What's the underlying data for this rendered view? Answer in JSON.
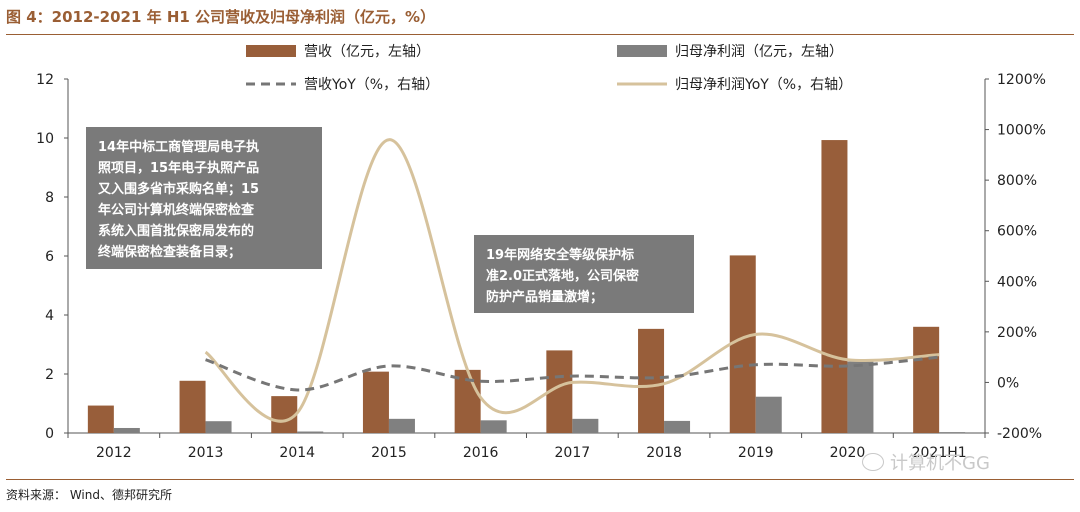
{
  "title": "图 4：2012-2021 年 H1 公司营收及归母净利润（亿元，%）",
  "source": "资料来源： Wind、德邦研究所",
  "watermark": "计算机不GG",
  "colors": {
    "revenue": "#985e3a",
    "profit": "#808080",
    "revenue_yoy": "#767676",
    "profit_yoy": "#d6c29c",
    "annotation_bg": "#7a7a7a",
    "title": "#9a5e34"
  },
  "chart_data": {
    "type": "bar",
    "categories": [
      "2012",
      "2013",
      "2014",
      "2015",
      "2016",
      "2017",
      "2018",
      "2019",
      "2020",
      "2021H1"
    ],
    "series": [
      {
        "name": "营收（亿元，左轴）",
        "type": "bar",
        "axis": "left",
        "values": [
          0.93,
          1.77,
          1.25,
          2.08,
          2.14,
          2.8,
          3.53,
          6.02,
          9.93,
          3.6
        ]
      },
      {
        "name": "归母净利润（亿元，左轴）",
        "type": "bar",
        "axis": "left",
        "values": [
          0.17,
          0.4,
          0.05,
          0.48,
          0.43,
          0.48,
          0.41,
          1.23,
          2.42,
          0.03
        ]
      },
      {
        "name": "营收YoY（%，右轴）",
        "type": "line",
        "style": "dashed",
        "axis": "right",
        "values": [
          null,
          90,
          -30,
          65,
          5,
          25,
          20,
          70,
          65,
          100
        ]
      },
      {
        "name": "归母净利润YoY（%，右轴）",
        "type": "line",
        "style": "smooth",
        "axis": "right",
        "values": [
          null,
          120,
          -120,
          960,
          -60,
          0,
          -5,
          190,
          90,
          110
        ]
      }
    ],
    "left_axis": {
      "min": 0,
      "max": 12,
      "ticks": [
        "0",
        "2",
        "4",
        "6",
        "8",
        "10",
        "12"
      ]
    },
    "right_axis": {
      "min": -200,
      "max": 1200,
      "ticks": [
        "-200%",
        "0%",
        "200%",
        "400%",
        "600%",
        "800%",
        "1000%",
        "1200%"
      ]
    },
    "legend": {
      "revenue": "营收（亿元，左轴）",
      "profit": "归母净利润（亿元，左轴）",
      "revenue_yoy": "营收YoY（%，右轴）",
      "profit_yoy": "归母净利润YoY（%，右轴）"
    },
    "annotations": [
      {
        "lines": [
          "14年中标工商管理局电子执",
          "照项目，15年电子执照产品",
          "又入围多省市采购名单；15",
          "年公司计算机终端保密检查",
          "系统入围首批保密局发布的",
          "终端保密检查装备目录；"
        ]
      },
      {
        "lines": [
          "19年网络安全等级保护标",
          "准2.0正式落地，公司保密",
          "防护产品销量激增；"
        ]
      }
    ]
  }
}
